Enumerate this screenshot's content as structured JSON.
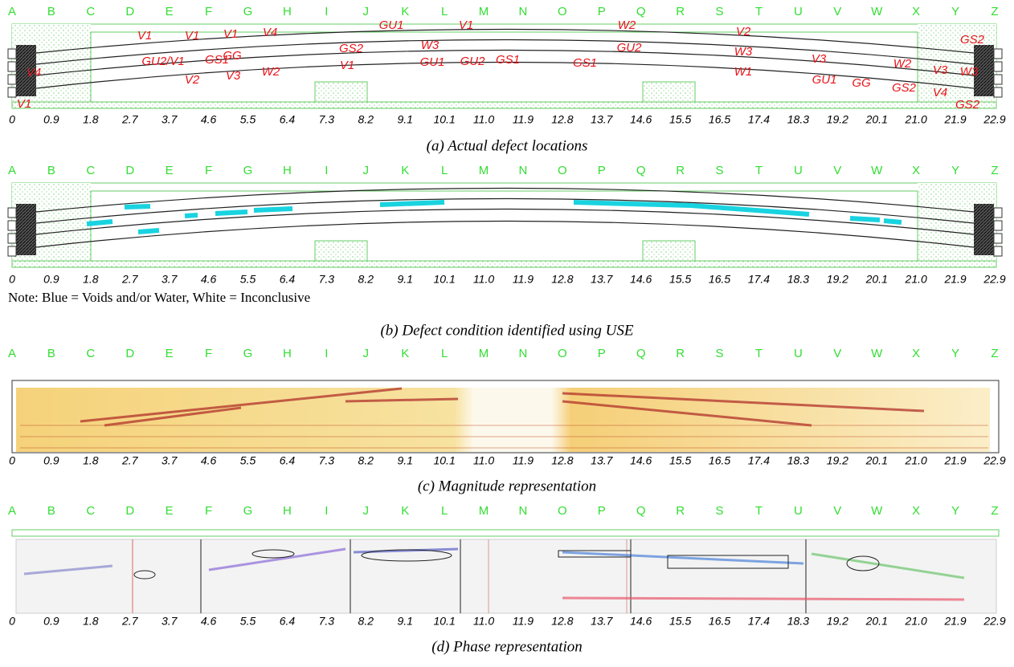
{
  "column_letters": [
    "A",
    "B",
    "C",
    "D",
    "E",
    "F",
    "G",
    "H",
    "I",
    "J",
    "K",
    "L",
    "M",
    "N",
    "O",
    "P",
    "Q",
    "R",
    "S",
    "T",
    "U",
    "V",
    "W",
    "X",
    "Y",
    "Z"
  ],
  "distances": [
    "0",
    "0.9",
    "1.8",
    "2.7",
    "3.7",
    "4.6",
    "5.5",
    "6.4",
    "7.3",
    "8.2",
    "9.1",
    "10.1",
    "11.0",
    "11.9",
    "12.8",
    "13.7",
    "14.6",
    "15.5",
    "16.5",
    "17.4",
    "18.3",
    "19.2",
    "20.1",
    "21.0",
    "21.9",
    "22.9"
  ],
  "panels": [
    {
      "caption": "(a) Actual defect locations",
      "defect_labels": [
        "V1",
        "V1",
        "V1",
        "V4",
        "GU1",
        "V1",
        "W2",
        "V2",
        "GS2",
        "GU2/V1",
        "GS1",
        "GG",
        "GS2",
        "W3",
        "W3",
        "GU2",
        "V3",
        "W2",
        "V3",
        "W3",
        "V4",
        "V2",
        "V3",
        "W2",
        "V1",
        "GU1",
        "GU2",
        "GS1",
        "GS1",
        "W1",
        "GU1",
        "GG",
        "GS2",
        "V4",
        "V1",
        "GS2"
      ]
    },
    {
      "caption": "(b) Defect condition identified using USE",
      "note": "Note: Blue = Voids and/or Water, White = Inconclusive"
    },
    {
      "caption": "(c) Magnitude representation"
    },
    {
      "caption": "(d) Phase representation"
    }
  ]
}
